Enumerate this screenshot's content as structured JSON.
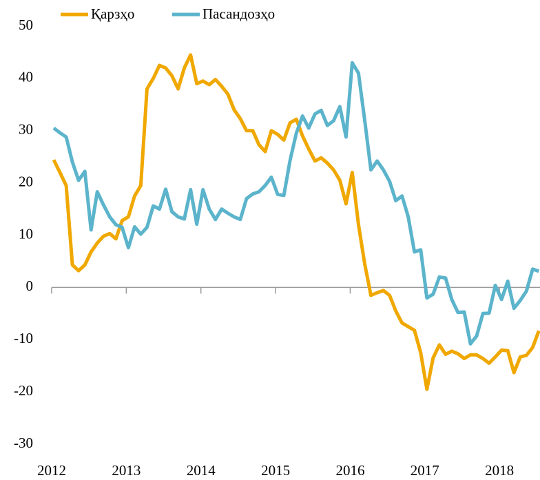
{
  "chart_data": {
    "type": "line",
    "categories": [
      "2012",
      null,
      null,
      null,
      null,
      null,
      null,
      null,
      null,
      null,
      null,
      null,
      "2013",
      null,
      null,
      null,
      null,
      null,
      null,
      null,
      null,
      null,
      null,
      null,
      "2014",
      null,
      null,
      null,
      null,
      null,
      null,
      null,
      null,
      null,
      null,
      null,
      "2015",
      null,
      null,
      null,
      null,
      null,
      null,
      null,
      null,
      null,
      null,
      null,
      "2016",
      null,
      null,
      null,
      null,
      null,
      null,
      null,
      null,
      null,
      null,
      null,
      "2017",
      null,
      null,
      null,
      null,
      null,
      null,
      null,
      null,
      null,
      null,
      null,
      "2018",
      null,
      null,
      null,
      null,
      null,
      null
    ],
    "series": [
      {
        "name": "Қарзҳо",
        "color": "#f0a800",
        "values": [
          24.4,
          22,
          19.5,
          4.3,
          3.2,
          4.3,
          6.8,
          8.5,
          9.8,
          10.3,
          9.3,
          12.8,
          13.5,
          17.5,
          19.5,
          38,
          40,
          42.5,
          42,
          40.5,
          38,
          42,
          44.5,
          39,
          39.5,
          38.8,
          39.8,
          38.5,
          37,
          34,
          32.3,
          30,
          30,
          27.3,
          26,
          30,
          29.3,
          28.2,
          31.5,
          32.2,
          29,
          26.5,
          24.2,
          24.8,
          23.8,
          22.5,
          20.5,
          16,
          22,
          12,
          4.5,
          -1.5,
          -1,
          -0.6,
          -1.5,
          -4.5,
          -6.8,
          -7.5,
          -8.2,
          -12.5,
          -19.5,
          -13.5,
          -11,
          -12.8,
          -12.2,
          -12.7,
          -13.6,
          -12.9,
          -12.9,
          -13.6,
          -14.5,
          -13.3,
          -12,
          -12.1,
          -16.3,
          -13.3,
          -13,
          -11.5,
          -8.3
        ]
      },
      {
        "name": "Пасандозҳо",
        "color": "#5bb4cb",
        "values": [
          30.5,
          29.6,
          28.8,
          24,
          20.5,
          22.2,
          11,
          18.3,
          15.8,
          13.5,
          12,
          11.5,
          7.6,
          11.6,
          10.2,
          11.5,
          15.6,
          15,
          18.8,
          14.5,
          13.5,
          13.1,
          18.7,
          12.1,
          18.7,
          15,
          13,
          15,
          14.2,
          13.5,
          13,
          17,
          17.9,
          18.3,
          19.5,
          21.1,
          17.8,
          17.6,
          24.3,
          29.5,
          32.8,
          30.5,
          33.2,
          33.9,
          31,
          31.9,
          34.6,
          28.8,
          43,
          41,
          32,
          22.5,
          24.2,
          22.5,
          20.3,
          16.6,
          17.5,
          13.5,
          6.8,
          7.2,
          -2,
          -1.3,
          2,
          1.8,
          -2.3,
          -4.8,
          -4.7,
          -10.8,
          -9.3,
          -5,
          -4.9,
          0.4,
          -2.3,
          1.2,
          -4,
          -2.5,
          -0.7,
          3.5,
          3.1
        ]
      }
    ],
    "ylim": [
      -30,
      50
    ],
    "yticks": [
      -30,
      -20,
      -10,
      0,
      10,
      20,
      30,
      40,
      50
    ],
    "legend": "top-left",
    "grid": false
  }
}
